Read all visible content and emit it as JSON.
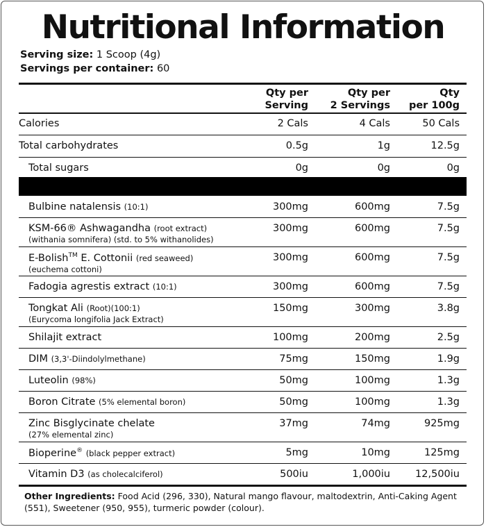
{
  "title": "Nutritional Information",
  "serving": [
    {
      "label": "Serving size:",
      "value": "1 Scoop (4g)"
    },
    {
      "label": "Servings per container:",
      "value": "60"
    }
  ],
  "table": {
    "header": [
      [
        "Qty per",
        "Serving"
      ],
      [
        "Qty per",
        "2 Servings"
      ],
      [
        "Qty",
        "per 100g"
      ]
    ],
    "top_rows": [
      {
        "name": "Calories",
        "cells": [
          "2 Cals",
          "4 Cals",
          "50 Cals"
        ]
      },
      {
        "name": "Total carbohydrates",
        "cells": [
          "0.5g",
          "1g",
          "12.5g"
        ]
      },
      {
        "name": "Total sugars",
        "cells": [
          "0g",
          "0g",
          "0g"
        ],
        "indent": true
      }
    ],
    "rows": [
      {
        "name": "Bulbine natalensis",
        "note": "(10:1)",
        "cells": [
          "300mg",
          "600mg",
          "7.5g"
        ]
      },
      {
        "name": "KSM-66® Ashwagandha",
        "note": "(root extract)",
        "note2": "(withania somnifera) (std. to 5% withanolides)",
        "cells": [
          "300mg",
          "600mg",
          "7.5g"
        ]
      },
      {
        "name": "E-Bolish",
        "sup": "TM",
        "name_rest": "E. Cottonii",
        "note": "(red seaweed)",
        "note2": "(euchema cottoni)",
        "cells": [
          "300mg",
          "600mg",
          "7.5g"
        ]
      },
      {
        "name": "Fadogia agrestis extract",
        "note": "(10:1)",
        "cells": [
          "300mg",
          "600mg",
          "7.5g"
        ]
      },
      {
        "name": "Tongkat Ali",
        "note": "(Root)(100:1)",
        "note2": "(Eurycoma longifolia Jack Extract)",
        "cells": [
          "150mg",
          "300mg",
          "3.8g"
        ]
      },
      {
        "name": "Shilajit extract",
        "cells": [
          "100mg",
          "200mg",
          "2.5g"
        ]
      },
      {
        "name": "DIM",
        "note": "(3,3'-Diindolylmethane)",
        "cells": [
          "75mg",
          "150mg",
          "1.9g"
        ]
      },
      {
        "name": "Luteolin",
        "note": "(98%)",
        "cells": [
          "50mg",
          "100mg",
          "1.3g"
        ]
      },
      {
        "name": "Boron Citrate",
        "note": "(5% elemental boron)",
        "cells": [
          "50mg",
          "100mg",
          "1.3g"
        ]
      },
      {
        "name": "Zinc Bisglycinate chelate",
        "note2": "(27% elemental zinc)",
        "cells": [
          "37mg",
          "74mg",
          "925mg"
        ]
      },
      {
        "name": "Bioperine",
        "sup": "®",
        "note": "(black pepper extract)",
        "cells": [
          "5mg",
          "10mg",
          "125mg"
        ]
      },
      {
        "name": "Vitamin D3",
        "note": "(as cholecalciferol)",
        "cells": [
          "500iu",
          "1,000iu",
          "12,500iu"
        ]
      }
    ]
  },
  "footer": {
    "label": "Other Ingredients:",
    "text": "Food Acid (296, 330), Natural mango flavour, maltodextrin, Anti-Caking Agent (551),  Sweetener (950, 955), turmeric powder (colour)."
  }
}
